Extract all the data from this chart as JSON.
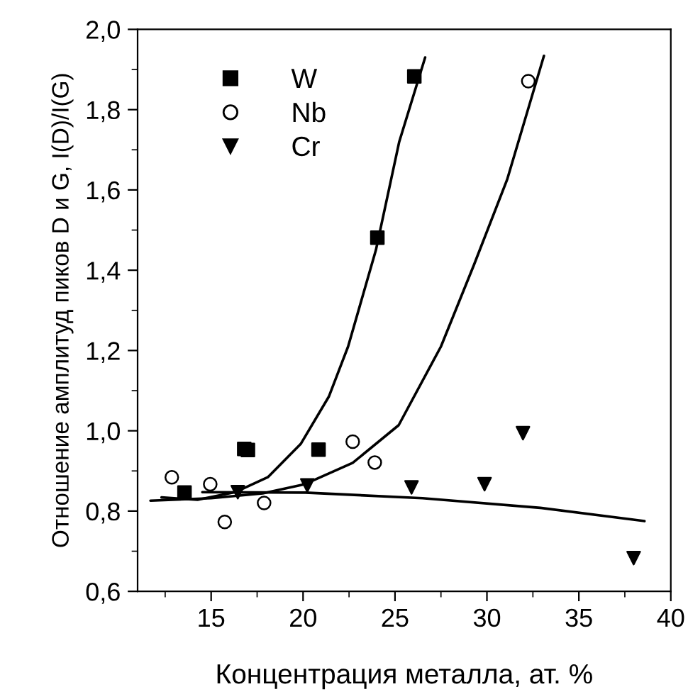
{
  "chart_data": {
    "type": "scatter",
    "xlabel": "Концентрация металла, ат. %",
    "ylabel": "Отношение амплитуд пиков D и G, I(D)/I(G)",
    "xlim": [
      11,
      40
    ],
    "ylim": [
      0.6,
      2.0
    ],
    "xticks": [
      {
        "value": 12.5,
        "label": null
      },
      15,
      {
        "value": 17.5,
        "label": null
      },
      20,
      {
        "value": 22.5,
        "label": null
      },
      25,
      {
        "value": 27.5,
        "label": null
      },
      30,
      {
        "value": 32.5,
        "label": null
      },
      35,
      {
        "value": 37.5,
        "label": null
      },
      40
    ],
    "yticks": [
      {
        "value": 0.6,
        "label": "0,6"
      },
      {
        "value": 0.7,
        "label": null
      },
      {
        "value": 0.8,
        "label": "0,8"
      },
      {
        "value": 0.9,
        "label": null
      },
      {
        "value": 1.0,
        "label": "1,0"
      },
      {
        "value": 1.1,
        "label": null
      },
      {
        "value": 1.2,
        "label": "1,2"
      },
      {
        "value": 1.3,
        "label": null
      },
      {
        "value": 1.4,
        "label": "1,4"
      },
      {
        "value": 1.5,
        "label": null
      },
      {
        "value": 1.6,
        "label": "1,6"
      },
      {
        "value": 1.7,
        "label": null
      },
      {
        "value": 1.8,
        "label": "1,8"
      },
      {
        "value": 1.9,
        "label": null
      },
      {
        "value": 2.0,
        "label": "2,0"
      }
    ],
    "grid": false,
    "legend": "top left",
    "series": [
      {
        "name": "W",
        "marker": "square",
        "color": "#000000",
        "x": [
          13.55,
          16.8,
          17.0,
          20.84,
          24.04,
          26.05
        ],
        "values": [
          0.846,
          0.955,
          0.952,
          0.953,
          1.481,
          1.883
        ]
      },
      {
        "name": "Nb",
        "marker": "circle",
        "color": "#000000",
        "x": [
          12.86,
          14.95,
          15.74,
          17.88,
          22.7,
          23.9,
          32.25
        ],
        "values": [
          0.884,
          0.867,
          0.773,
          0.82,
          0.973,
          0.921,
          1.871
        ]
      },
      {
        "name": "Cr",
        "marker": "triangle",
        "color": "#000000",
        "x": [
          16.45,
          20.23,
          25.9,
          29.87,
          31.96,
          37.98
        ],
        "values": [
          0.847,
          0.864,
          0.859,
          0.867,
          0.994,
          0.683
        ]
      },
      {
        "type": "line",
        "color": "#000000",
        "line_style": "solid",
        "x": [
          12.3,
          14.26,
          16.3,
          18.1,
          19.87,
          21.4,
          22.45,
          23.96,
          25.23,
          26.64
        ],
        "values": [
          0.834,
          0.828,
          0.847,
          0.885,
          0.967,
          1.085,
          1.21,
          1.45,
          1.72,
          1.93
        ]
      },
      {
        "type": "line",
        "color": "#000000",
        "line_style": "solid",
        "x": [
          11.7,
          15.0,
          17.8,
          20.1,
          22.7,
          25.2,
          27.5,
          29.3,
          31.1,
          33.1
        ],
        "values": [
          0.826,
          0.832,
          0.844,
          0.867,
          0.92,
          1.014,
          1.21,
          1.414,
          1.626,
          1.934
        ]
      },
      {
        "type": "line",
        "color": "#000000",
        "line_style": "solid",
        "x": [
          14.52,
          20.13,
          26.5,
          32.9,
          38.57
        ],
        "values": [
          0.847,
          0.846,
          0.832,
          0.808,
          0.775
        ]
      }
    ]
  }
}
